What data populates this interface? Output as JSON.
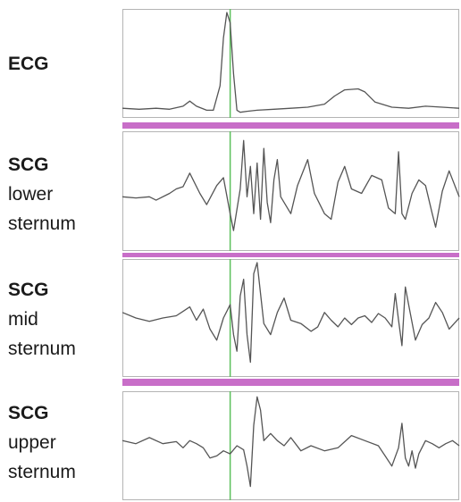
{
  "labels": [
    {
      "title": "ECG",
      "subtitle": []
    },
    {
      "title": "SCG",
      "subtitle": [
        "lower",
        "sternum"
      ]
    },
    {
      "title": "SCG",
      "subtitle": [
        "mid",
        "sternum"
      ]
    },
    {
      "title": "SCG",
      "subtitle": [
        "upper",
        "sternum"
      ]
    }
  ],
  "colors": {
    "trace": "#555555",
    "marker": "#5cc05c",
    "separator": "#c86ec8",
    "frame": "#b4b4b4"
  },
  "chart_data": [
    {
      "type": "line",
      "name": "ECG",
      "x_domain": [
        0,
        1
      ],
      "y_domain": [
        0,
        1
      ],
      "marker_x": 0.32,
      "x": [
        0.0,
        0.05,
        0.1,
        0.14,
        0.18,
        0.2,
        0.22,
        0.25,
        0.27,
        0.29,
        0.3,
        0.31,
        0.32,
        0.33,
        0.34,
        0.35,
        0.37,
        0.4,
        0.45,
        0.5,
        0.55,
        0.6,
        0.63,
        0.66,
        0.7,
        0.72,
        0.75,
        0.8,
        0.85,
        0.9,
        0.95,
        1.0
      ],
      "y": [
        0.06,
        0.05,
        0.06,
        0.05,
        0.08,
        0.13,
        0.08,
        0.04,
        0.04,
        0.28,
        0.75,
        1.0,
        0.9,
        0.4,
        0.04,
        0.02,
        0.03,
        0.04,
        0.05,
        0.06,
        0.07,
        0.1,
        0.18,
        0.24,
        0.25,
        0.22,
        0.12,
        0.07,
        0.06,
        0.08,
        0.07,
        0.06
      ]
    },
    {
      "type": "line",
      "name": "SCG lower sternum",
      "x_domain": [
        0,
        1
      ],
      "y_domain": [
        0,
        1
      ],
      "marker_x": 0.32,
      "x": [
        0.0,
        0.04,
        0.08,
        0.1,
        0.14,
        0.16,
        0.18,
        0.2,
        0.23,
        0.25,
        0.28,
        0.3,
        0.32,
        0.33,
        0.35,
        0.36,
        0.37,
        0.38,
        0.39,
        0.4,
        0.41,
        0.42,
        0.43,
        0.44,
        0.45,
        0.46,
        0.47,
        0.5,
        0.52,
        0.55,
        0.57,
        0.6,
        0.62,
        0.64,
        0.66,
        0.68,
        0.71,
        0.74,
        0.77,
        0.79,
        0.81,
        0.82,
        0.83,
        0.84,
        0.86,
        0.88,
        0.9,
        0.92,
        0.93,
        0.95,
        0.97,
        1.0
      ],
      "y": [
        0.45,
        0.44,
        0.45,
        0.42,
        0.48,
        0.52,
        0.54,
        0.66,
        0.48,
        0.38,
        0.55,
        0.62,
        0.3,
        0.15,
        0.52,
        0.95,
        0.45,
        0.72,
        0.3,
        0.75,
        0.25,
        0.88,
        0.4,
        0.22,
        0.6,
        0.78,
        0.45,
        0.3,
        0.55,
        0.78,
        0.48,
        0.3,
        0.25,
        0.58,
        0.72,
        0.52,
        0.48,
        0.64,
        0.6,
        0.35,
        0.3,
        0.85,
        0.3,
        0.25,
        0.48,
        0.6,
        0.55,
        0.3,
        0.18,
        0.5,
        0.68,
        0.45
      ]
    },
    {
      "type": "line",
      "name": "SCG mid sternum",
      "x_domain": [
        0,
        1
      ],
      "y_domain": [
        0,
        1
      ],
      "marker_x": 0.32,
      "x": [
        0.0,
        0.04,
        0.08,
        0.12,
        0.16,
        0.18,
        0.2,
        0.22,
        0.24,
        0.26,
        0.28,
        0.3,
        0.32,
        0.33,
        0.34,
        0.35,
        0.36,
        0.37,
        0.38,
        0.39,
        0.4,
        0.42,
        0.44,
        0.46,
        0.48,
        0.5,
        0.53,
        0.56,
        0.58,
        0.6,
        0.62,
        0.64,
        0.66,
        0.68,
        0.7,
        0.72,
        0.74,
        0.76,
        0.78,
        0.8,
        0.81,
        0.82,
        0.83,
        0.84,
        0.85,
        0.87,
        0.89,
        0.91,
        0.93,
        0.95,
        0.97,
        1.0
      ],
      "y": [
        0.55,
        0.5,
        0.47,
        0.5,
        0.52,
        0.56,
        0.6,
        0.48,
        0.58,
        0.4,
        0.3,
        0.5,
        0.62,
        0.35,
        0.2,
        0.7,
        0.85,
        0.35,
        0.1,
        0.9,
        1.0,
        0.45,
        0.35,
        0.55,
        0.68,
        0.48,
        0.45,
        0.38,
        0.42,
        0.55,
        0.48,
        0.42,
        0.5,
        0.44,
        0.5,
        0.52,
        0.46,
        0.54,
        0.5,
        0.42,
        0.72,
        0.48,
        0.25,
        0.78,
        0.62,
        0.3,
        0.44,
        0.5,
        0.64,
        0.55,
        0.4,
        0.5
      ]
    },
    {
      "type": "line",
      "name": "SCG upper sternum",
      "x_domain": [
        0,
        1
      ],
      "y_domain": [
        0,
        1
      ],
      "marker_x": 0.32,
      "x": [
        0.0,
        0.04,
        0.08,
        0.12,
        0.16,
        0.18,
        0.2,
        0.22,
        0.24,
        0.26,
        0.28,
        0.3,
        0.32,
        0.34,
        0.36,
        0.37,
        0.38,
        0.39,
        0.4,
        0.41,
        0.42,
        0.44,
        0.46,
        0.48,
        0.5,
        0.53,
        0.56,
        0.6,
        0.64,
        0.68,
        0.72,
        0.76,
        0.78,
        0.8,
        0.82,
        0.83,
        0.84,
        0.85,
        0.86,
        0.87,
        0.88,
        0.9,
        0.92,
        0.94,
        0.96,
        0.98,
        1.0
      ],
      "y": [
        0.55,
        0.52,
        0.58,
        0.52,
        0.54,
        0.48,
        0.55,
        0.52,
        0.48,
        0.38,
        0.4,
        0.45,
        0.42,
        0.5,
        0.46,
        0.3,
        0.1,
        0.7,
        0.98,
        0.85,
        0.55,
        0.62,
        0.55,
        0.5,
        0.58,
        0.45,
        0.5,
        0.45,
        0.48,
        0.6,
        0.55,
        0.5,
        0.4,
        0.3,
        0.48,
        0.72,
        0.38,
        0.3,
        0.45,
        0.28,
        0.42,
        0.55,
        0.52,
        0.48,
        0.52,
        0.55,
        0.5
      ]
    }
  ]
}
